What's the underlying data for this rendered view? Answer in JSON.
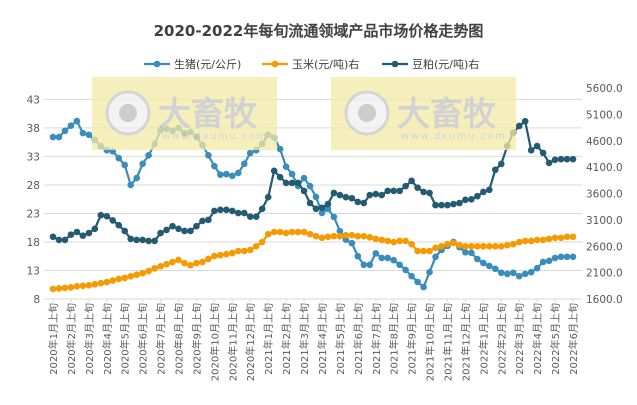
{
  "chart_data": {
    "type": "line",
    "title": "2020-2022年每旬流通领域产品市场价格走势图",
    "x_tick_labels": [
      "2020年1月上旬",
      "2020年2月上旬",
      "2020年3月上旬",
      "2020年4月上旬",
      "2020年5月上旬",
      "2020年6月上旬",
      "2020年7月上旬",
      "2020年8月上旬",
      "2020年9月上旬",
      "2020年10月上旬",
      "2020年11月上旬",
      "2020年12月上旬",
      "2021年1月上旬",
      "2021年2月上旬",
      "2021年3月上旬",
      "2021年4月上旬",
      "2021年5月上旬",
      "2021年6月上旬",
      "2021年7月上旬",
      "2021年8月上旬",
      "2021年9月上旬",
      "2021年10月上旬",
      "2021年11月上旬",
      "2021年12月上旬",
      "2022年1月上旬",
      "2022年2月上旬",
      "2022年3月上旬",
      "2022年4月上旬",
      "2022年5月上旬",
      "2022年6月上旬"
    ],
    "x_note": "three points (上/中/下旬) per month label",
    "left_axis": {
      "ylim": [
        8,
        45
      ],
      "ticks": [
        8,
        13,
        18,
        23,
        28,
        33,
        38,
        43
      ]
    },
    "right_axis": {
      "ylim": [
        1600,
        5600
      ],
      "ticks": [
        "1600.0",
        "2100.0",
        "2600.0",
        "3100.0",
        "3600.0",
        "4100.0",
        "4600.0",
        "5100.0",
        "5600.0"
      ]
    },
    "grid": true,
    "legend": "top",
    "series": [
      {
        "name": "生猪(元/公斤)",
        "axis": "left",
        "color": "#3a8dbb",
        "values": [
          36.4,
          36.4,
          37.5,
          38.4,
          39.2,
          37.1,
          36.8,
          35.9,
          34.8,
          34.1,
          33.9,
          32.7,
          31.5,
          28.0,
          29.2,
          31.7,
          33.2,
          35.2,
          37.6,
          37.8,
          37.5,
          38.0,
          37.1,
          37.3,
          36.4,
          35.0,
          33.2,
          31.3,
          29.8,
          29.9,
          29.6,
          30.1,
          31.7,
          33.6,
          34.1,
          35.2,
          36.8,
          36.3,
          34.3,
          31.2,
          29.9,
          27.8,
          29.2,
          27.8,
          25.9,
          23.1,
          23.8,
          22.4,
          19.9,
          18.4,
          17.8,
          15.5,
          14.0,
          14.0,
          16.0,
          15.2,
          15.2,
          14.8,
          14.0,
          13.1,
          12.0,
          11.0,
          10.1,
          12.7,
          15.4,
          16.6,
          17.3,
          18.0,
          17.1,
          16.2,
          16.1,
          15.0,
          14.3,
          13.8,
          13.3,
          12.6,
          12.4,
          12.6,
          12.0,
          12.4,
          12.7,
          13.4,
          14.5,
          14.7,
          15.2,
          15.4,
          15.4,
          15.4
        ]
      },
      {
        "name": "玉米(元/吨)右",
        "axis": "right",
        "color": "#f59a00",
        "values": [
          1790,
          1800,
          1810,
          1820,
          1840,
          1850,
          1860,
          1880,
          1900,
          1920,
          1950,
          1980,
          2000,
          2030,
          2060,
          2090,
          2130,
          2180,
          2220,
          2260,
          2300,
          2340,
          2280,
          2240,
          2280,
          2300,
          2360,
          2415,
          2430,
          2450,
          2470,
          2510,
          2510,
          2530,
          2600,
          2680,
          2830,
          2870,
          2870,
          2850,
          2870,
          2870,
          2870,
          2830,
          2790,
          2760,
          2780,
          2790,
          2790,
          2810,
          2810,
          2790,
          2790,
          2770,
          2740,
          2720,
          2700,
          2680,
          2700,
          2700,
          2640,
          2510,
          2510,
          2510,
          2570,
          2600,
          2640,
          2660,
          2620,
          2600,
          2600,
          2600,
          2600,
          2600,
          2600,
          2600,
          2620,
          2640,
          2680,
          2700,
          2700,
          2720,
          2720,
          2740,
          2760,
          2760,
          2780,
          2780
        ]
      },
      {
        "name": "豆粕(元/吨)右",
        "axis": "right",
        "color": "#245a72",
        "values": [
          2780,
          2720,
          2720,
          2820,
          2870,
          2800,
          2850,
          2930,
          3190,
          3170,
          3090,
          3000,
          2890,
          2740,
          2720,
          2720,
          2700,
          2700,
          2850,
          2910,
          2980,
          2930,
          2890,
          2890,
          2980,
          3080,
          3100,
          3270,
          3290,
          3290,
          3270,
          3230,
          3230,
          3160,
          3160,
          3310,
          3530,
          4030,
          3910,
          3800,
          3800,
          3800,
          3650,
          3420,
          3310,
          3330,
          3400,
          3610,
          3570,
          3530,
          3510,
          3440,
          3420,
          3570,
          3590,
          3570,
          3650,
          3650,
          3650,
          3740,
          3840,
          3710,
          3630,
          3610,
          3380,
          3380,
          3380,
          3400,
          3420,
          3480,
          3490,
          3550,
          3630,
          3670,
          4050,
          4160,
          4500,
          4750,
          4880,
          4970,
          4420,
          4500,
          4370,
          4180,
          4240,
          4250,
          4250,
          4250
        ]
      }
    ]
  },
  "watermark": {
    "brand": "大畜牧",
    "url": "www.dxumu.com"
  }
}
